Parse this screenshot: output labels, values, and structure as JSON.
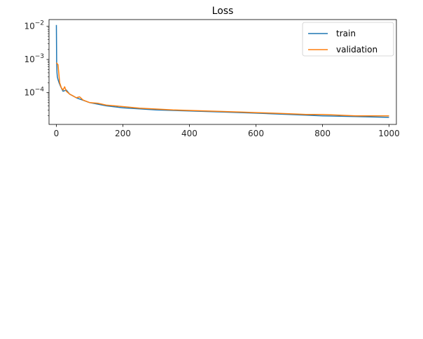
{
  "chart_data": {
    "type": "line",
    "title": "Loss",
    "xlabel": "",
    "ylabel": "",
    "xlim": [
      -22,
      1022
    ],
    "ylim": [
      1.1e-05,
      0.016
    ],
    "yscale": "log",
    "xticks": [
      0,
      200,
      400,
      600,
      800,
      1000
    ],
    "xtick_labels": [
      "0",
      "200",
      "400",
      "600",
      "800",
      "1000"
    ],
    "yticks": [
      0.0001,
      0.001,
      0.01
    ],
    "ytick_labels": [
      {
        "base": "10",
        "exp": "−4"
      },
      {
        "base": "10",
        "exp": "−3"
      },
      {
        "base": "10",
        "exp": "−2"
      }
    ],
    "grid": false,
    "legend": "upper right",
    "series": [
      {
        "name": "train",
        "color": "#1f77b4",
        "x": [
          0,
          1,
          2,
          3,
          5,
          8,
          12,
          20,
          30,
          40,
          60,
          100,
          150,
          200,
          300,
          400,
          500,
          600,
          700,
          800,
          900,
          1000
        ],
        "y": [
          0.011,
          0.0008,
          0.0004,
          0.0003,
          0.00025,
          0.0002,
          0.00016,
          0.00011,
          0.00012,
          9e-05,
          7e-05,
          5e-05,
          4e-05,
          3.5e-05,
          3e-05,
          2.8e-05,
          2.6e-05,
          2.4e-05,
          2.2e-05,
          2e-05,
          1.9e-05,
          1.8e-05
        ]
      },
      {
        "name": "validation",
        "color": "#ff7f0e",
        "x": [
          0,
          5,
          10,
          15,
          20,
          25,
          30,
          40,
          50,
          60,
          70,
          80,
          100,
          125,
          150,
          175,
          200,
          250,
          300,
          350,
          400,
          450,
          500,
          550,
          600,
          650,
          700,
          750,
          800,
          850,
          900,
          950,
          1000
        ],
        "y": [
          0.0008,
          0.0007,
          0.0002,
          0.00014,
          0.00012,
          0.00015,
          0.00011,
          9e-05,
          8e-05,
          7e-05,
          7.5e-05,
          6e-05,
          5e-05,
          4.8e-05,
          4.2e-05,
          4e-05,
          3.8e-05,
          3.4e-05,
          3.2e-05,
          3e-05,
          2.9e-05,
          2.8e-05,
          2.7e-05,
          2.6e-05,
          2.5e-05,
          2.4e-05,
          2.3e-05,
          2.2e-05,
          2.2e-05,
          2.1e-05,
          2e-05,
          2e-05,
          2e-05
        ]
      }
    ]
  }
}
